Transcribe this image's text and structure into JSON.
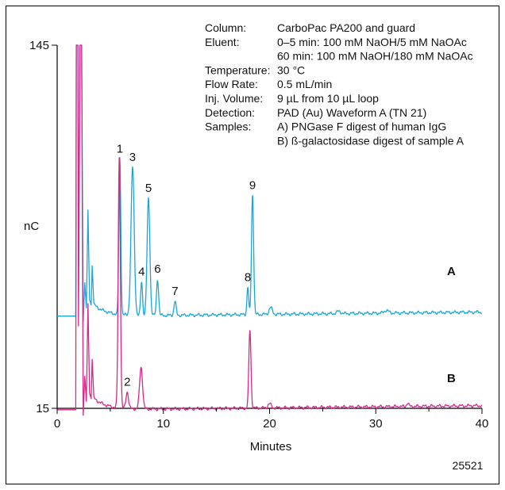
{
  "chart_data": {
    "type": "line",
    "xlabel": "Minutes",
    "ylabel": "nC",
    "xlim": [
      0,
      40
    ],
    "ylim": [
      15,
      145
    ],
    "x_ticks": [
      "0",
      "10",
      "20",
      "30",
      "40"
    ],
    "y_ticks": [
      "145",
      "15"
    ],
    "figure_id": "25521",
    "conditions": [
      {
        "label": "Column:",
        "value": "CarboPac PA200 and guard"
      },
      {
        "label": "Eluent:",
        "value": "0–5 min: 100 mM NaOH/5 mM NaOAc"
      },
      {
        "label": "",
        "value": "60 min: 100 mM NaOH/180 mM NaOAc"
      },
      {
        "label": "Temperature:",
        "value": "30 °C"
      },
      {
        "label": "Flow Rate:",
        "value": "0.5 mL/min"
      },
      {
        "label": "Inj. Volume:",
        "value": "9 µL from 10 µL loop"
      },
      {
        "label": "Detection:",
        "value": "PAD (Au) Waveform A (TN 21)"
      },
      {
        "label": "Samples:",
        "value": "A) PNGase F digest of human IgG"
      },
      {
        "label": "",
        "value": "B) ß-galactosidase digest of sample A"
      }
    ],
    "series": [
      {
        "name": "A",
        "color": "#1aa7d8",
        "baseline": 48,
        "peaks": [
          {
            "label": "1",
            "x": 5.9,
            "height": 56,
            "width": 0.09
          },
          {
            "label": "3",
            "x": 7.1,
            "height": 53,
            "width": 0.15
          },
          {
            "label": "5",
            "x": 8.6,
            "height": 42,
            "width": 0.13
          },
          {
            "label": "4",
            "x": 7.95,
            "height": 12,
            "width": 0.09
          },
          {
            "label": "6",
            "x": 9.45,
            "height": 13,
            "width": 0.1
          },
          {
            "label": "7",
            "x": 11.1,
            "height": 5,
            "width": 0.1
          },
          {
            "label": "8",
            "x": 17.95,
            "height": 10,
            "width": 0.08
          },
          {
            "label": "9",
            "x": 18.4,
            "height": 43,
            "width": 0.1
          },
          {
            "label": "",
            "x": 20.1,
            "height": 2.5,
            "width": 0.15
          },
          {
            "label": "",
            "x": 26.5,
            "height": 0.8,
            "width": 0.2
          },
          {
            "label": "",
            "x": 31.0,
            "height": 1,
            "width": 0.2
          }
        ]
      },
      {
        "name": "B",
        "color": "#d42a8b",
        "baseline": 14.5,
        "peaks": [
          {
            "label": "",
            "x": 5.85,
            "height": 90,
            "width": 0.1
          },
          {
            "label": "2",
            "x": 6.6,
            "height": 6,
            "width": 0.12
          },
          {
            "label": "",
            "x": 7.9,
            "height": 15,
            "width": 0.14
          },
          {
            "label": "",
            "x": 18.15,
            "height": 28,
            "width": 0.1
          },
          {
            "label": "",
            "x": 20.0,
            "height": 1.5,
            "width": 0.15
          },
          {
            "label": "",
            "x": 33.0,
            "height": 1.2,
            "width": 0.1
          }
        ]
      }
    ]
  }
}
